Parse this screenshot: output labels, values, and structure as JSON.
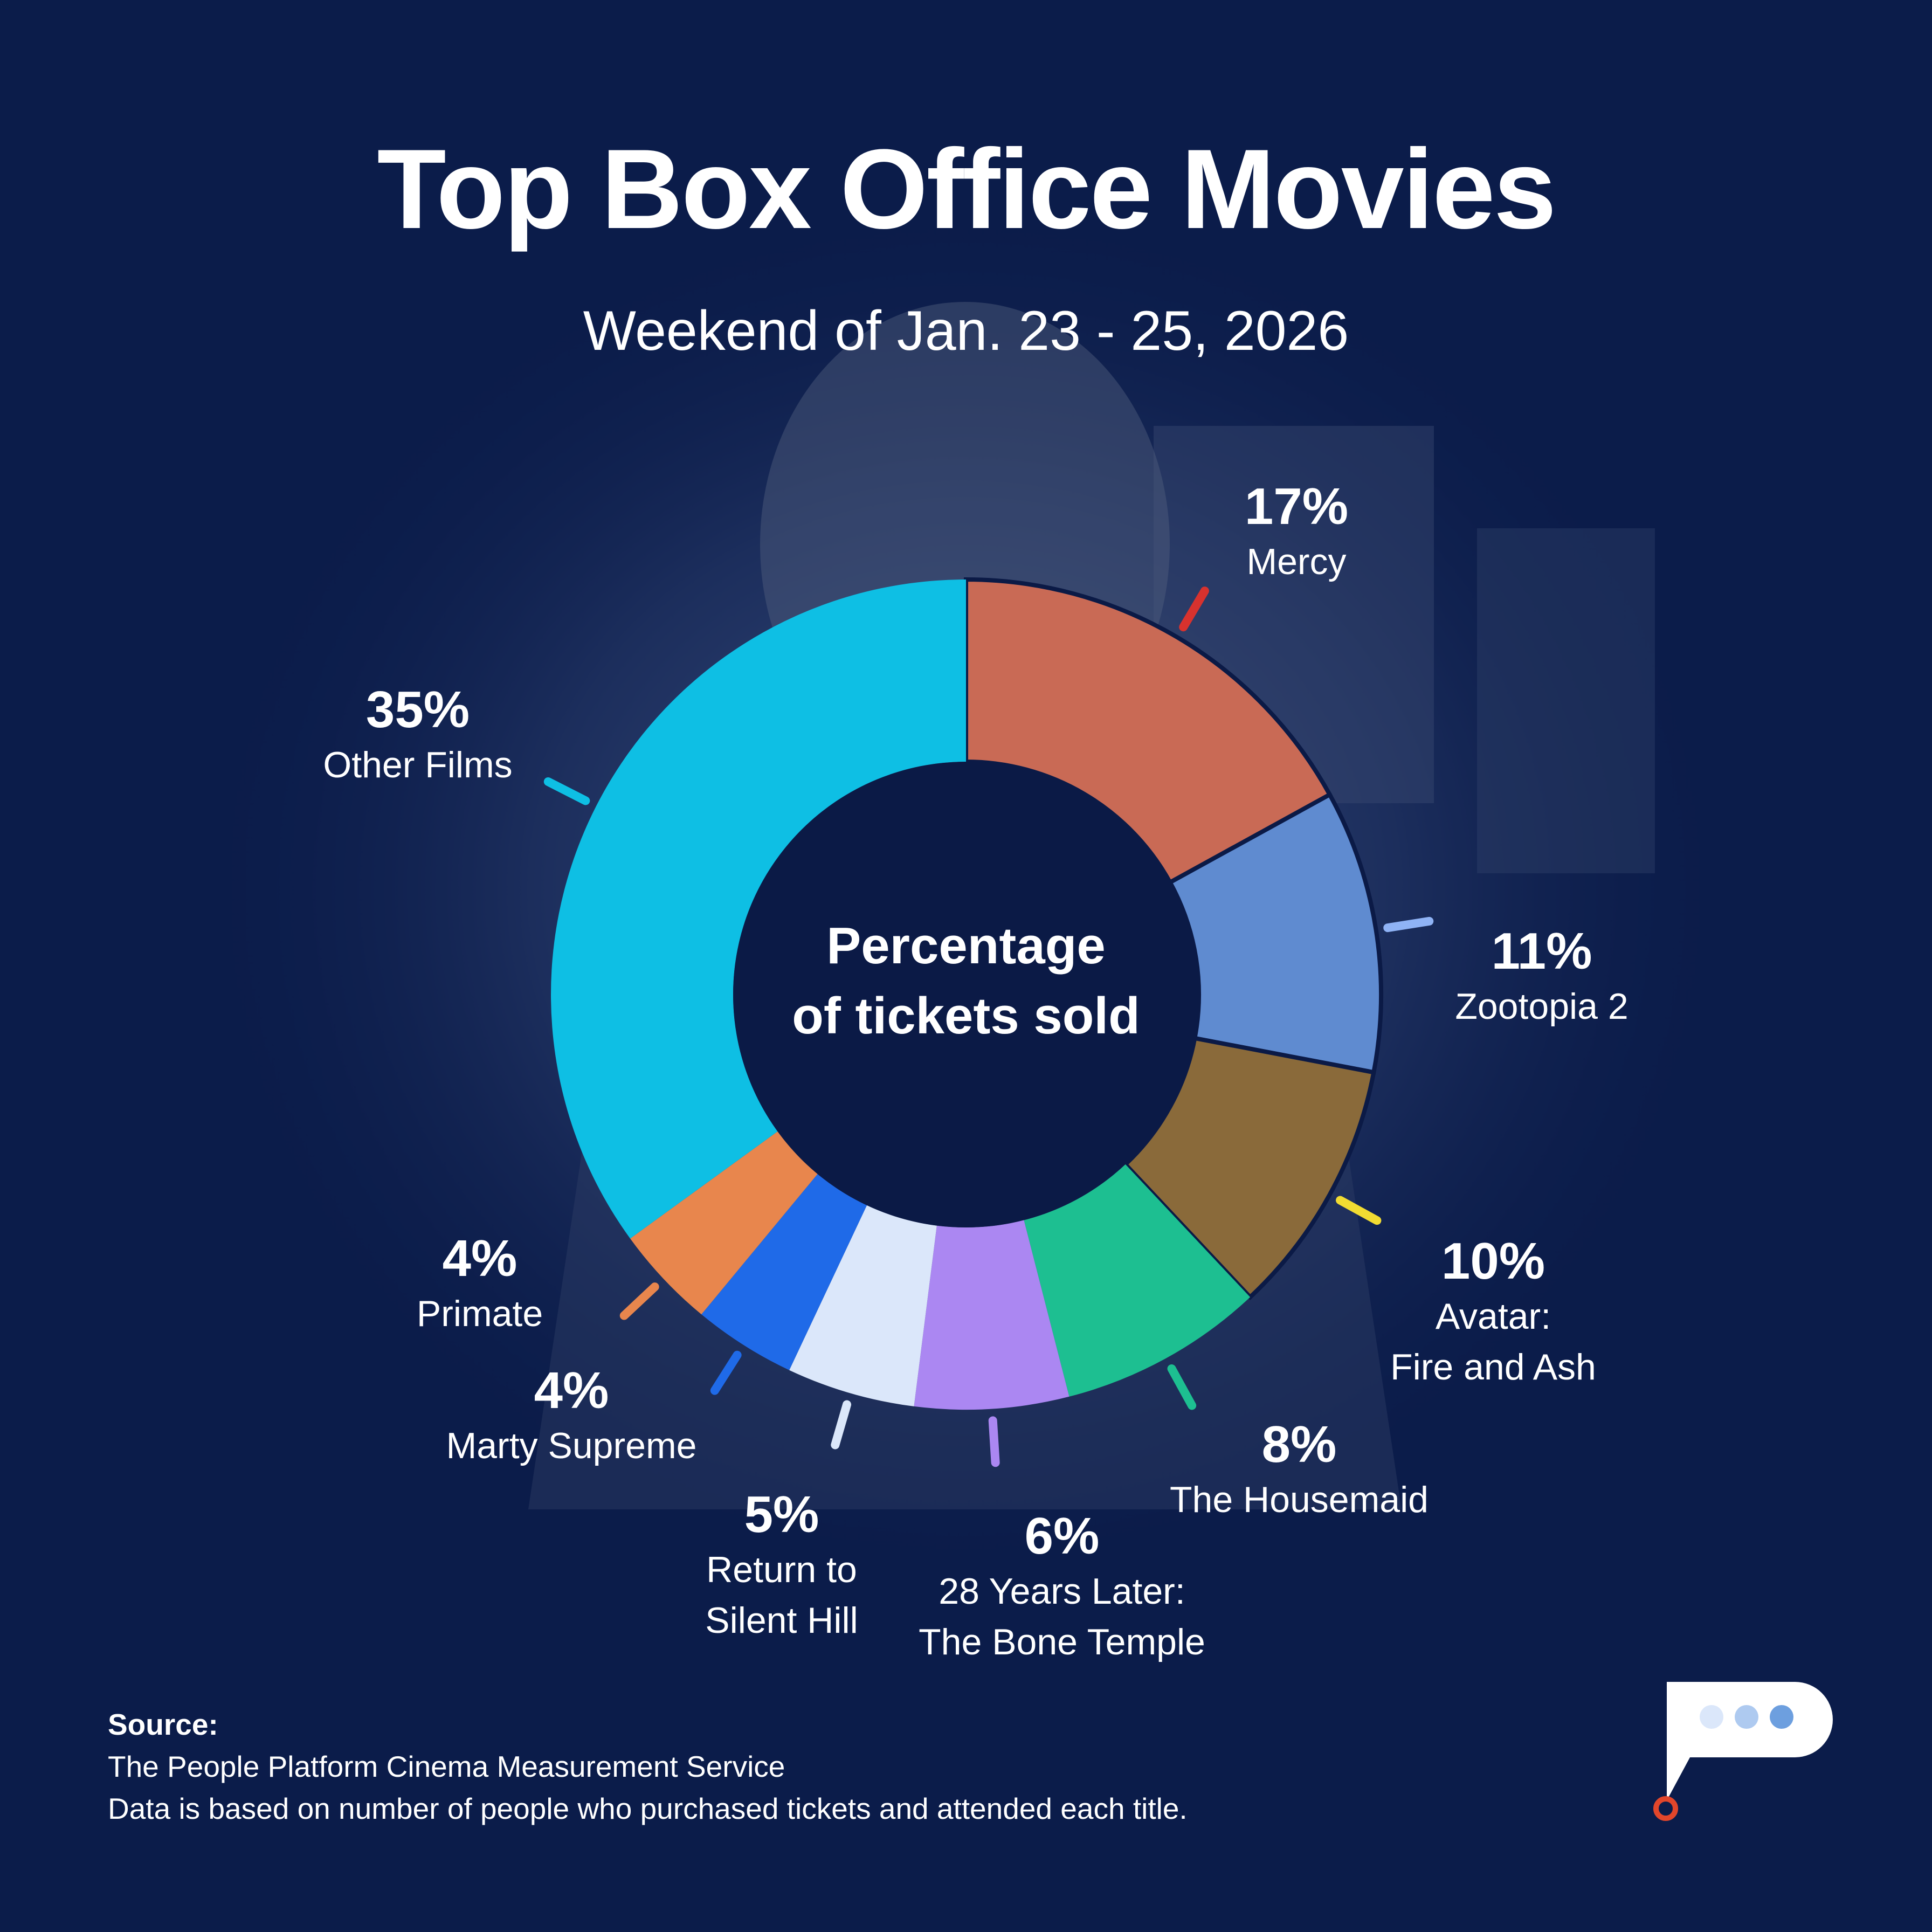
{
  "header": {
    "title": "Top Box Office Movies",
    "subtitle": "Weekend of Jan. 23 - 25, 2026"
  },
  "chart_data": {
    "type": "pie",
    "variant": "donut",
    "title": "Top Box Office Movies",
    "subtitle": "Weekend of Jan. 23 - 25, 2026",
    "center_label": [
      "Percentage",
      "of tickets sold"
    ],
    "unit": "%",
    "slices": [
      {
        "label": "Mercy",
        "label_lines": [
          "Mercy"
        ],
        "value": 17,
        "display": "17%",
        "color": "#c96a55"
      },
      {
        "label": "Zootopia 2",
        "label_lines": [
          "Zootopia 2"
        ],
        "value": 11,
        "display": "11%",
        "color": "#5f8bd0"
      },
      {
        "label": "Avatar: Fire and Ash",
        "label_lines": [
          "Avatar:",
          "Fire and Ash"
        ],
        "value": 10,
        "display": "10%",
        "color": "#8a6a3a"
      },
      {
        "label": "The Housemaid",
        "label_lines": [
          "The Housemaid"
        ],
        "value": 8,
        "display": "8%",
        "color": "#1dbf91"
      },
      {
        "label": "28 Years Later: The Bone Temple",
        "label_lines": [
          "28 Years Later:",
          "The Bone Temple"
        ],
        "value": 6,
        "display": "6%",
        "color": "#ab87f2"
      },
      {
        "label": "Return to Silent Hill",
        "label_lines": [
          "Return to",
          "Silent Hill"
        ],
        "value": 5,
        "display": "5%",
        "color": "#dbe7fa"
      },
      {
        "label": "Marty Supreme",
        "label_lines": [
          "Marty Supreme"
        ],
        "value": 4,
        "display": "4%",
        "color": "#1f6ae8"
      },
      {
        "label": "Primate",
        "label_lines": [
          "Primate"
        ],
        "value": 4,
        "display": "4%",
        "color": "#e8864d"
      },
      {
        "label": "Other Films",
        "label_lines": [
          "Other Films"
        ],
        "value": 35,
        "display": "35%",
        "color": "#0ebfe4"
      }
    ],
    "leader_colors": [
      "#d8322e",
      "#8fb3f5",
      "#f2dc32",
      "#1dbf91",
      "#ab87f2",
      "#dbe7fa",
      "#1f6ae8",
      "#e8864d",
      "#0ebfe4"
    ]
  },
  "source": {
    "heading": "Source:",
    "line1": "The People Platform Cinema Measurement Service",
    "line2": "Data is based on number of people who purchased tickets and attended each title."
  },
  "colors": {
    "background": "#0b1c4a",
    "center_fill": "#0b1a46",
    "logo_accent": "#e2462b"
  }
}
